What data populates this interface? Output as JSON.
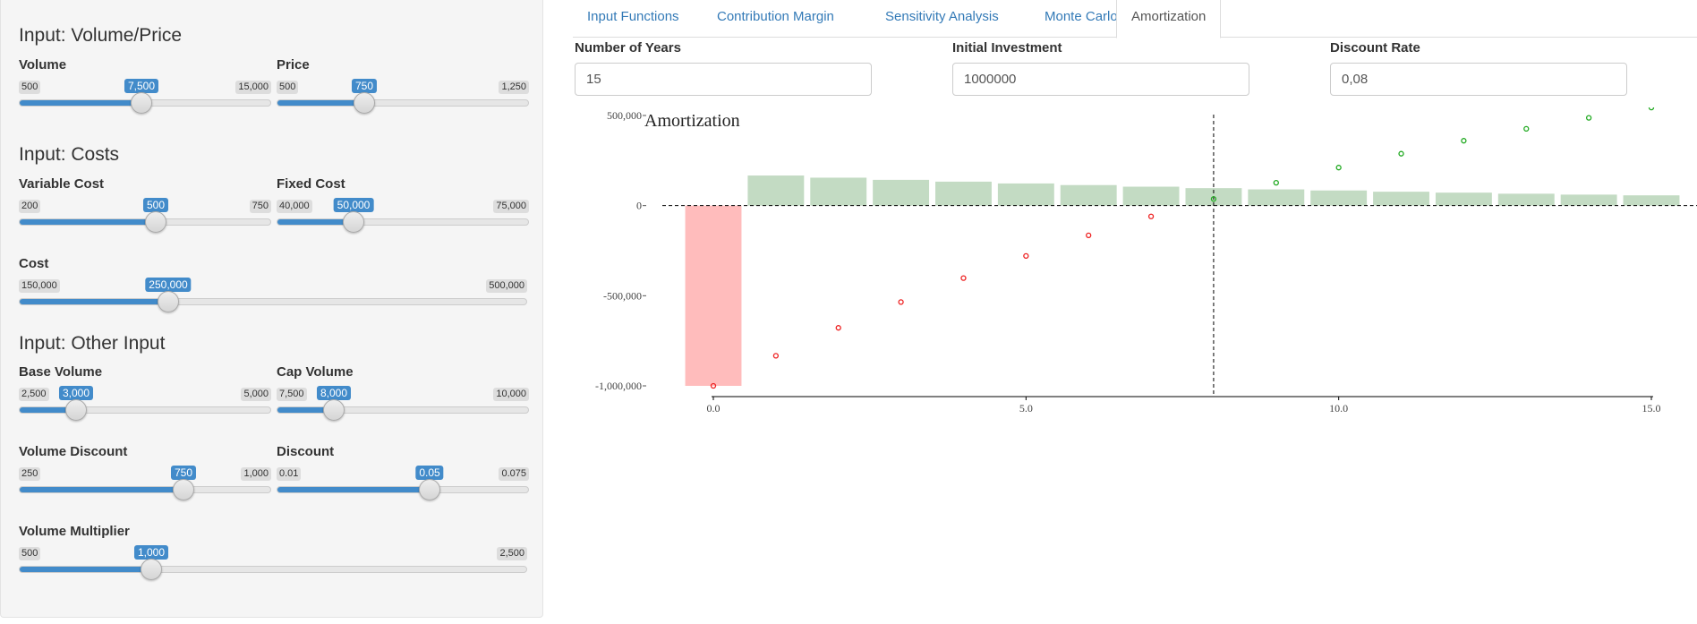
{
  "sidebar": {
    "sections": [
      {
        "title": "Input: Volume/Price"
      },
      {
        "title": "Input: Costs"
      },
      {
        "title": "Input: Other Input"
      }
    ],
    "sliders": {
      "volume": {
        "label": "Volume",
        "min": "500",
        "max": "15,000",
        "value": "7,500",
        "fraction": 0.4828
      },
      "price": {
        "label": "Price",
        "min": "500",
        "max": "1,250",
        "value": "750",
        "fraction": 0.3333
      },
      "variable_cost": {
        "label": "Variable Cost",
        "min": "200",
        "max": "750",
        "value": "500",
        "fraction": 0.5455
      },
      "fixed_cost": {
        "label": "Fixed Cost",
        "min": "40,000",
        "max": "75,000",
        "value": "50,000",
        "fraction": 0.2857
      },
      "cost": {
        "label": "Cost",
        "min": "150,000",
        "max": "500,000",
        "value": "250,000",
        "fraction": 0.2857
      },
      "base_volume": {
        "label": "Base Volume",
        "min": "2,500",
        "max": "5,000",
        "value": "3,000",
        "fraction": 0.2
      },
      "cap_volume": {
        "label": "Cap Volume",
        "min": "7,500",
        "max": "10,000",
        "value": "8,000",
        "fraction": 0.2
      },
      "volume_discount": {
        "label": "Volume Discount",
        "min": "250",
        "max": "1,000",
        "value": "750",
        "fraction": 0.6667
      },
      "discount": {
        "label": "Discount",
        "min": "0.01",
        "max": "0.075",
        "value": "0.05",
        "fraction": 0.6154
      },
      "volume_multiplier": {
        "label": "Volume Multiplier",
        "min": "500",
        "max": "2,500",
        "value": "1,000",
        "fraction": 0.25
      }
    }
  },
  "tabs": [
    {
      "label": "Input Functions",
      "active": false
    },
    {
      "label": "Contribution Margin",
      "active": false
    },
    {
      "label": "Sensitivity Analysis",
      "active": false
    },
    {
      "label": "Monte Carlo",
      "active": false
    },
    {
      "label": "Amortization",
      "active": true
    }
  ],
  "inputs": {
    "years": {
      "label": "Number of Years",
      "value": "15"
    },
    "investment": {
      "label": "Initial Investment",
      "value": "1000000"
    },
    "discount_rate": {
      "label": "Discount Rate",
      "value": "0,08"
    }
  },
  "colors": {
    "accent": "#428bca",
    "tab_link": "#337ab7",
    "bar_negative": "#ffbcbc",
    "bar_positive": "#c3dbc3",
    "point_negative": "#ee2222",
    "point_positive": "#22aa22"
  },
  "chart_data": {
    "type": "bar",
    "title": "Amortization",
    "xlabel": "",
    "ylabel": "",
    "x": [
      0,
      1,
      2,
      3,
      4,
      5,
      6,
      7,
      8,
      9,
      10,
      11,
      12,
      13,
      14,
      15
    ],
    "bars": [
      -1000000,
      167000,
      155000,
      143000,
      133000,
      123000,
      114000,
      105000,
      97000,
      90000,
      84000,
      77000,
      72000,
      66000,
      61000,
      57000
    ],
    "cumulative": [
      -1000000,
      -833000,
      -678000,
      -535000,
      -402000,
      -279000,
      -165000,
      -60000,
      37000,
      127000,
      211000,
      288000,
      360000,
      426000,
      487000,
      544000
    ],
    "xlim": [
      0,
      15
    ],
    "ylim": [
      -1000000,
      500000
    ],
    "xticks": [
      "0.0",
      "5.0",
      "10.0",
      "15.0"
    ],
    "xtick_values": [
      0,
      5,
      10,
      15
    ],
    "yticks": [
      "500,000",
      "0",
      "-500,000",
      "-1,000,000"
    ],
    "ytick_values": [
      500000,
      0,
      -500000,
      -1000000
    ],
    "breakeven_x": 8,
    "grid": false
  }
}
